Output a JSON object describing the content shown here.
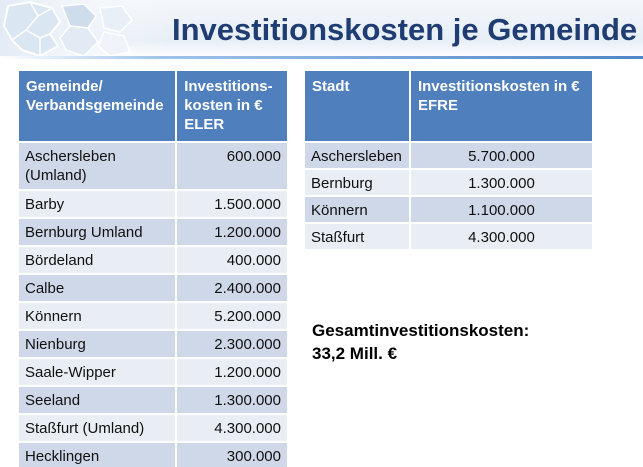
{
  "title": "Investitionskosten je Gemeinde",
  "table_eler": {
    "headers": [
      "Gemeinde/ Verbandsgemeinde",
      "Investitions-kosten in € ELER"
    ],
    "rows": [
      [
        "Aschersleben (Umland)",
        "600.000"
      ],
      [
        "Barby",
        "1.500.000"
      ],
      [
        "Bernburg Umland",
        "1.200.000"
      ],
      [
        "Bördeland",
        "400.000"
      ],
      [
        "Calbe",
        "2.400.000"
      ],
      [
        "Könnern",
        "5.200.000"
      ],
      [
        "Nienburg",
        "2.300.000"
      ],
      [
        "Saale-Wipper",
        "1.200.000"
      ],
      [
        "Seeland",
        "1.300.000"
      ],
      [
        "Staßfurt (Umland)",
        "4.300.000"
      ],
      [
        "Hecklingen",
        "300.000"
      ]
    ]
  },
  "table_efre": {
    "headers": [
      "Stadt",
      "Investitionskosten in € EFRE"
    ],
    "rows": [
      [
        "Aschersleben",
        "5.700.000"
      ],
      [
        "Bernburg",
        "1.300.000"
      ],
      [
        "Könnern",
        "1.100.000"
      ],
      [
        "Staßfurt",
        "4.300.000"
      ]
    ]
  },
  "total": {
    "label": "Gesamtinvestitionskosten:",
    "value": "33,2 Mill. €"
  },
  "colors": {
    "header_fill": "#4f7fbd",
    "row_dark": "#cfd8e8",
    "row_light": "#e9edf4",
    "title": "#1f3c73"
  }
}
